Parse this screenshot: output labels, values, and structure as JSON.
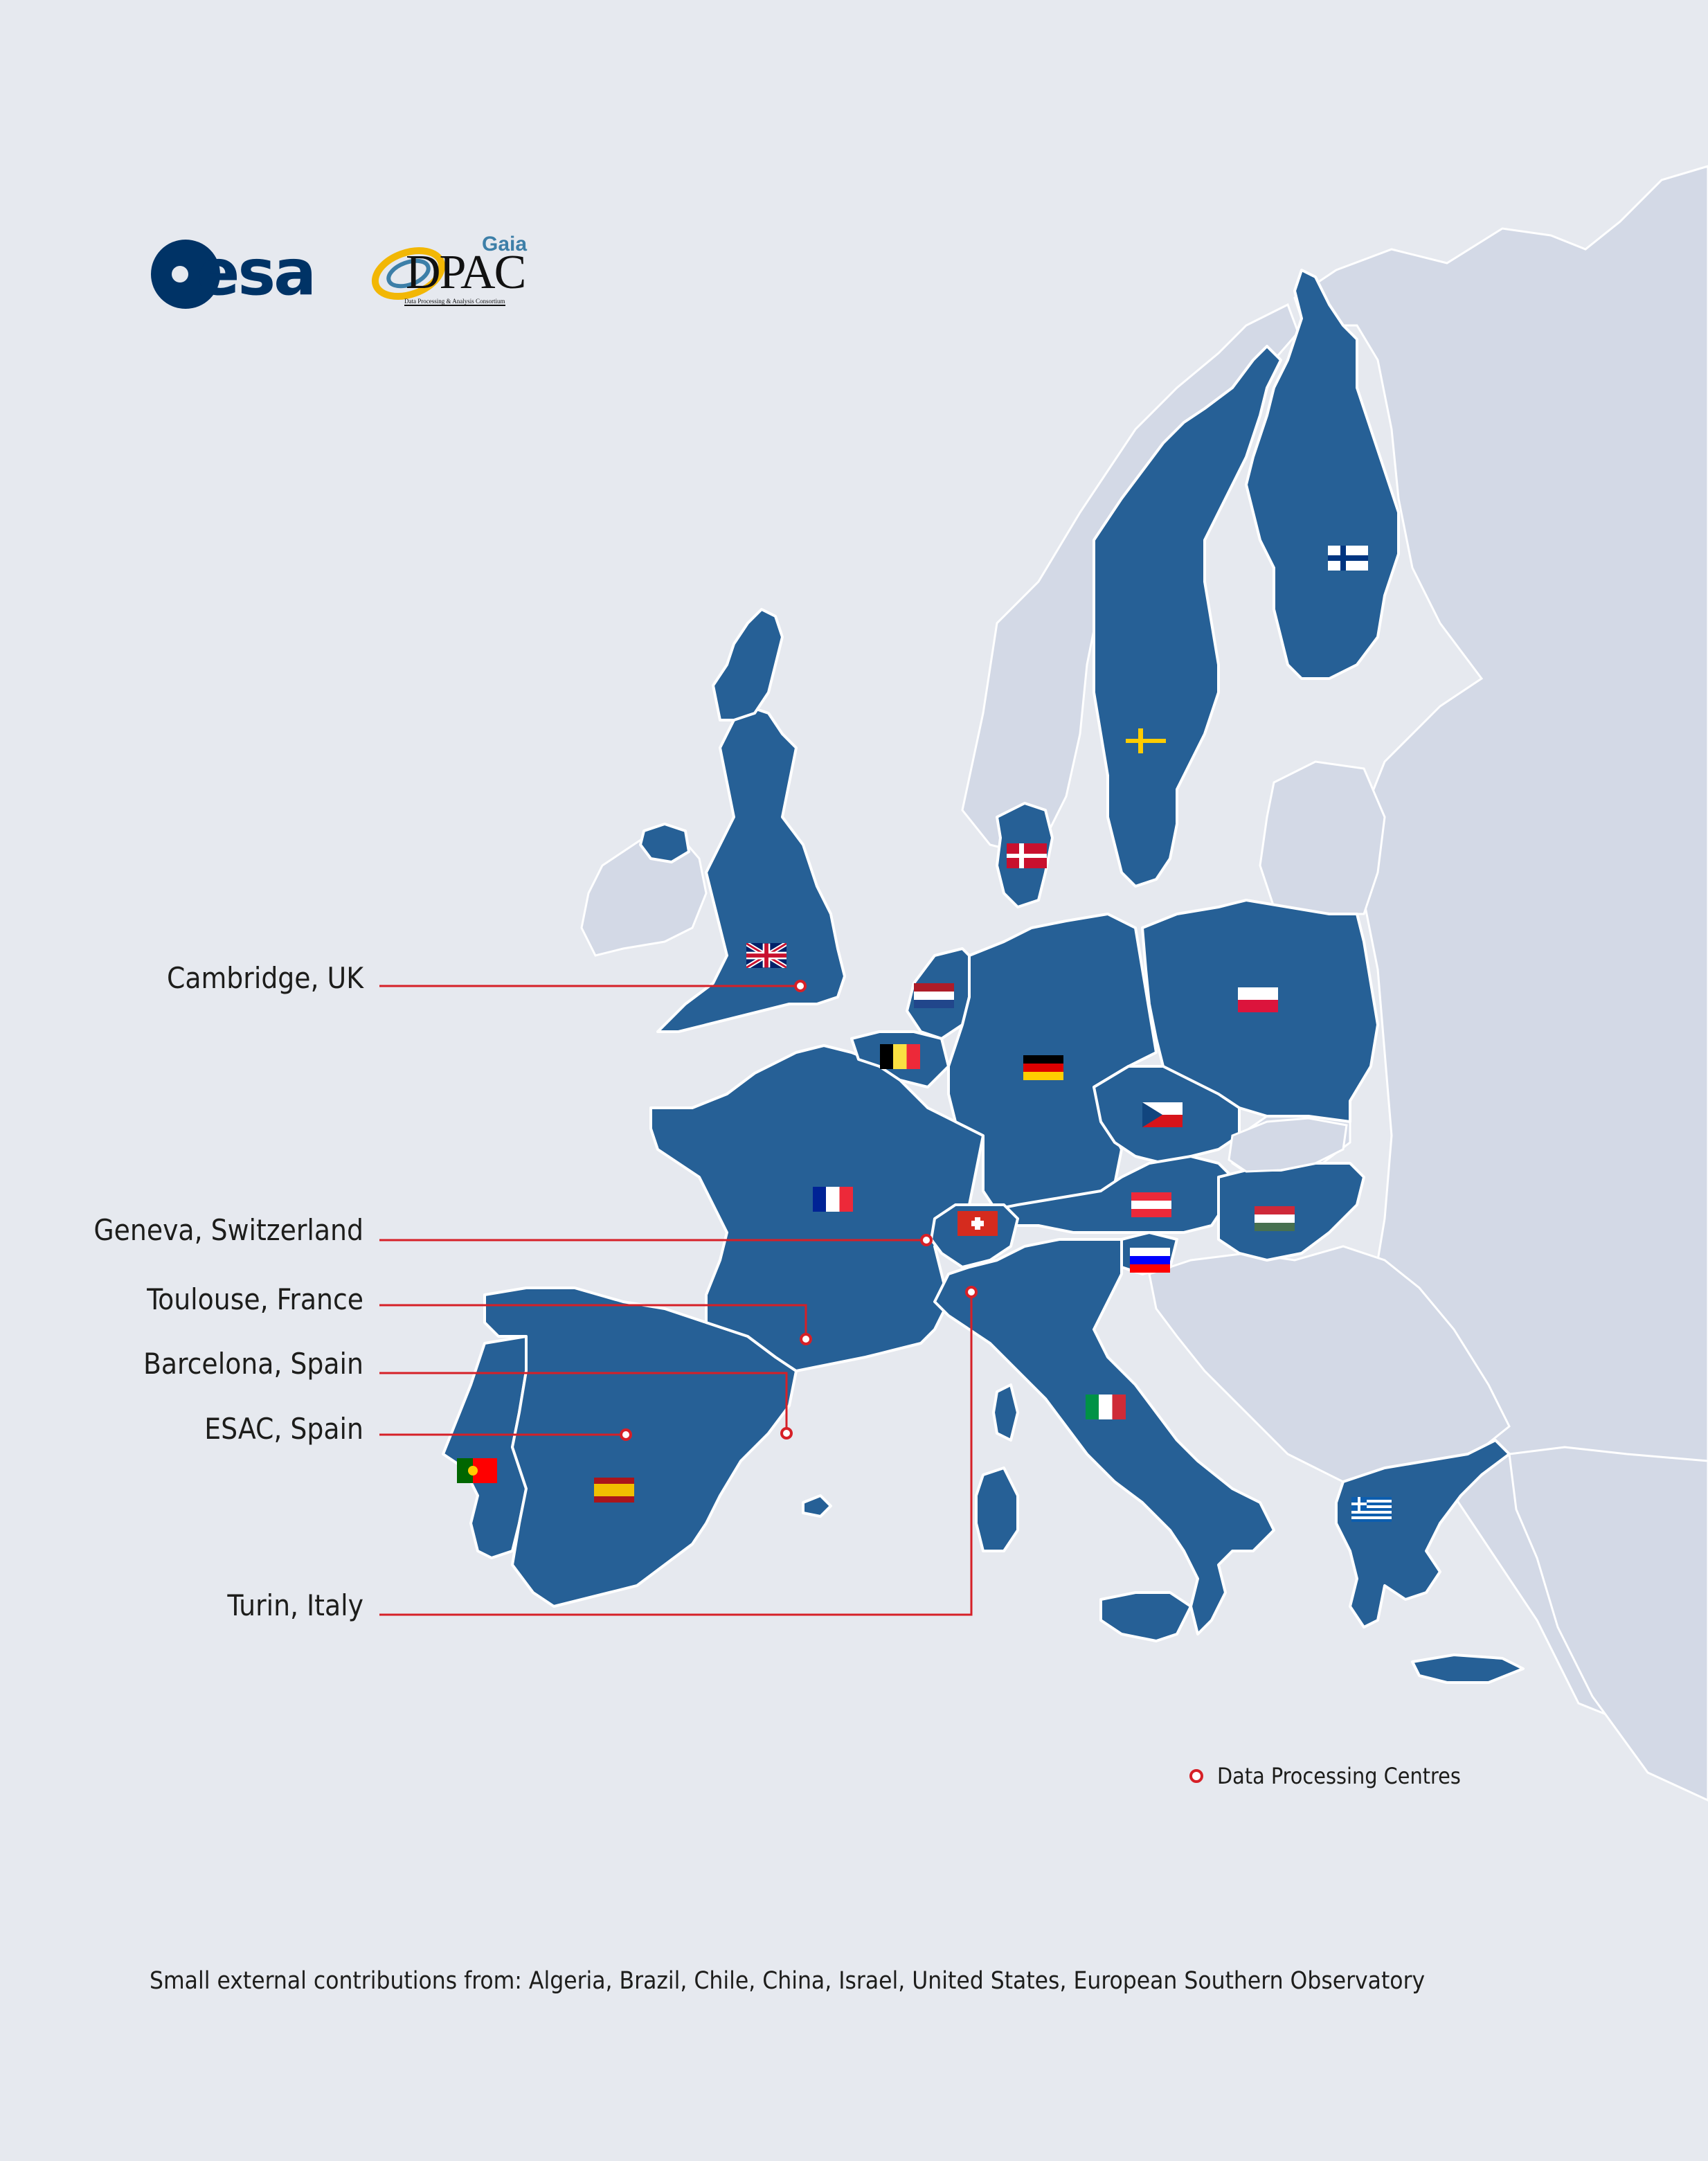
{
  "logos": {
    "esa_text": "esa",
    "gaia_text": "Gaia",
    "dpac_text": "DPAC",
    "dpac_subtitle": "Data Processing & Analysis Consortium"
  },
  "data_centres": [
    {
      "label": "Cambridge, UK"
    },
    {
      "label": "Geneva, Switzerland"
    },
    {
      "label": "Toulouse, France"
    },
    {
      "label": "Barcelona, Spain"
    },
    {
      "label": "ESAC, Spain"
    },
    {
      "label": "Turin, Italy"
    }
  ],
  "legend": {
    "label": "Data Processing Centres"
  },
  "footnote": "Small external contributions from: Algeria, Brazil, Chile, China, Israel, United States, European Southern Observatory",
  "member_countries": [
    {
      "name": "United Kingdom",
      "flag": "uk-flag"
    },
    {
      "name": "Netherlands",
      "flag": "netherlands-flag"
    },
    {
      "name": "Belgium",
      "flag": "belgium-flag"
    },
    {
      "name": "France",
      "flag": "france-flag"
    },
    {
      "name": "Switzerland",
      "flag": "switzerland-flag"
    },
    {
      "name": "Germany",
      "flag": "germany-flag"
    },
    {
      "name": "Denmark",
      "flag": "denmark-flag"
    },
    {
      "name": "Sweden",
      "flag": "sweden-flag"
    },
    {
      "name": "Finland",
      "flag": "finland-flag"
    },
    {
      "name": "Poland",
      "flag": "poland-flag"
    },
    {
      "name": "Czech Republic",
      "flag": "czech-flag"
    },
    {
      "name": "Austria",
      "flag": "austria-flag"
    },
    {
      "name": "Hungary",
      "flag": "hungary-flag"
    },
    {
      "name": "Slovenia",
      "flag": "slovenia-flag"
    },
    {
      "name": "Italy",
      "flag": "italy-flag"
    },
    {
      "name": "Spain",
      "flag": "spain-flag"
    },
    {
      "name": "Portugal",
      "flag": "portugal-flag"
    },
    {
      "name": "Greece",
      "flag": "greece-flag"
    }
  ],
  "colors": {
    "background": "#e6e9ef",
    "land_other": "#d3d9e6",
    "member_state": "#266096",
    "borders": "#ffffff",
    "leader_line": "#d62027"
  }
}
